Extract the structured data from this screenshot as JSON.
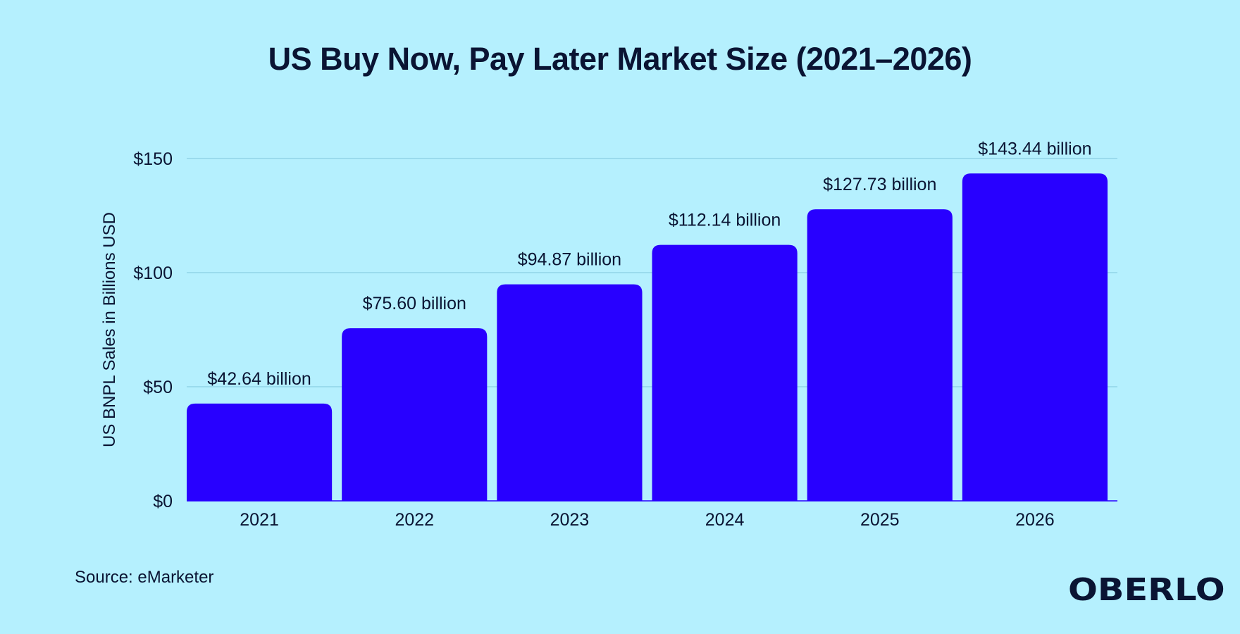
{
  "chart_data": {
    "type": "bar",
    "title": "US Buy Now, Pay Later Market Size (2021–2026)",
    "ylabel": "US BNPL Sales in Billions USD",
    "xlabel": "",
    "categories": [
      "2021",
      "2022",
      "2023",
      "2024",
      "2025",
      "2026"
    ],
    "values": [
      42.64,
      75.6,
      94.87,
      112.14,
      127.73,
      143.44
    ],
    "data_labels": [
      "$42.64 billion",
      "$75.60 billion",
      "$94.87 billion",
      "$112.14 billion",
      "$127.73 billion",
      "$143.44 billion"
    ],
    "y_ticks": [
      0,
      50,
      100,
      150
    ],
    "y_tick_labels": [
      "$0",
      "$50",
      "$100",
      "$150"
    ],
    "ylim": [
      0,
      150
    ],
    "grid": true,
    "legend": "none",
    "bar_color": "#2800ff",
    "gridline_color": "#7fc6dc"
  },
  "source": "Source: eMarketer",
  "brand": "OBERLO",
  "colors": {
    "background": "#b5f0fe",
    "text": "#0a1433"
  }
}
